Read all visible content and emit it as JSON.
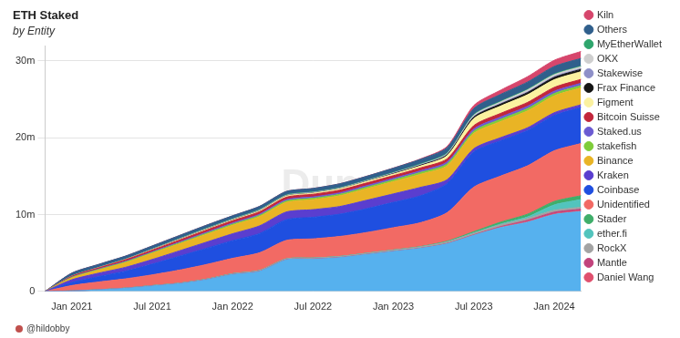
{
  "chart_data": {
    "type": "area",
    "title": "ETH Staked",
    "subtitle": "by Entity",
    "annotations": [
      "@hildobby",
      "Dune"
    ],
    "stacked": true,
    "grid": true,
    "legend": "right",
    "categories": [
      null,
      "Jan 2021",
      null,
      null,
      "Jul 2021",
      null,
      null,
      "Jan 2022",
      null,
      null,
      "Jul 2022",
      null,
      null,
      "Jan 2023",
      null,
      null,
      "Jul 2023",
      null,
      null,
      "Jan 2024",
      null
    ],
    "ylim": [
      0,
      32000000
    ],
    "yticks": [
      {
        "value": 0,
        "label": "0"
      },
      {
        "value": 10000000,
        "label": "10m"
      },
      {
        "value": 20000000,
        "label": "20m"
      },
      {
        "value": 30000000,
        "label": "30m"
      }
    ],
    "series": [
      {
        "color": "#56b1ee",
        "values": [
          0,
          50000,
          200000,
          400000,
          700000,
          1000000,
          1500000,
          2200000,
          2600000,
          4100000,
          4200000,
          4400000,
          4800000,
          5200000,
          5600000,
          6200000,
          7300000,
          8300000,
          9000000,
          10000000,
          10400000
        ]
      },
      {
        "name": "Daniel Wang",
        "color": "#e0506e",
        "values": [
          0,
          0,
          0,
          0,
          0,
          0,
          0,
          0,
          0,
          0,
          0,
          0,
          0,
          0,
          0,
          20000,
          50000,
          80000,
          100000,
          100000,
          100000
        ]
      },
      {
        "name": "Mantle",
        "color": "#c2437c",
        "values": [
          0,
          0,
          0,
          0,
          0,
          0,
          0,
          0,
          0,
          0,
          0,
          0,
          0,
          0,
          0,
          0,
          0,
          50000,
          150000,
          200000,
          200000
        ]
      },
      {
        "name": "RockX",
        "color": "#a3a3a3",
        "values": [
          0,
          10000,
          20000,
          30000,
          50000,
          60000,
          80000,
          100000,
          120000,
          130000,
          140000,
          150000,
          160000,
          180000,
          200000,
          210000,
          220000,
          230000,
          240000,
          250000,
          250000
        ]
      },
      {
        "name": "ether.fi",
        "color": "#52c4bd",
        "values": [
          0,
          0,
          0,
          0,
          0,
          0,
          0,
          0,
          0,
          0,
          0,
          0,
          0,
          0,
          0,
          20000,
          50000,
          100000,
          200000,
          700000,
          1000000
        ]
      },
      {
        "name": "Stader",
        "color": "#3fae6a",
        "values": [
          0,
          0,
          0,
          0,
          0,
          0,
          0,
          0,
          0,
          0,
          0,
          0,
          0,
          10000,
          30000,
          80000,
          150000,
          250000,
          350000,
          450000,
          500000
        ]
      },
      {
        "name": "Unidentified",
        "color": "#f26a64",
        "values": [
          0,
          700000,
          1000000,
          1200000,
          1400000,
          1700000,
          1900000,
          2000000,
          2300000,
          2400000,
          2500000,
          2600000,
          2700000,
          2900000,
          3100000,
          3700000,
          5800000,
          6000000,
          6300000,
          6600000,
          6800000
        ]
      },
      {
        "name": "Coinbase",
        "color": "#1f4fe0",
        "values": [
          0,
          400000,
          700000,
          1000000,
          1400000,
          1800000,
          2100000,
          2300000,
          2500000,
          2700000,
          2800000,
          2900000,
          3100000,
          3300000,
          3500000,
          3800000,
          4600000,
          4600000,
          4600000,
          4600000,
          4700000
        ]
      },
      {
        "name": "Kraken",
        "color": "#5a3ecf",
        "values": [
          0,
          350000,
          450000,
          500000,
          600000,
          700000,
          800000,
          900000,
          1000000,
          1000000,
          1000000,
          1000000,
          1100000,
          1100000,
          1100000,
          500000,
          400000,
          400000,
          350000,
          350000,
          350000
        ]
      },
      {
        "name": "Binance",
        "color": "#e9b425",
        "values": [
          0,
          250000,
          400000,
          600000,
          800000,
          900000,
          1000000,
          1100000,
          1200000,
          1250000,
          1300000,
          1400000,
          1500000,
          1600000,
          1700000,
          1800000,
          2000000,
          2100000,
          2200000,
          2200000,
          2200000
        ]
      },
      {
        "name": "stakefish",
        "color": "#7fcd3a",
        "values": [
          0,
          50000,
          70000,
          90000,
          100000,
          120000,
          140000,
          150000,
          160000,
          170000,
          180000,
          190000,
          200000,
          220000,
          240000,
          260000,
          280000,
          290000,
          300000,
          300000,
          300000
        ]
      },
      {
        "name": "Staked.us",
        "color": "#6b5bd2",
        "values": [
          0,
          50000,
          70000,
          90000,
          100000,
          120000,
          140000,
          150000,
          160000,
          170000,
          180000,
          190000,
          200000,
          200000,
          220000,
          250000,
          280000,
          290000,
          300000,
          300000,
          300000
        ]
      },
      {
        "name": "Bitcoin Suisse",
        "color": "#c2263b",
        "values": [
          0,
          100000,
          150000,
          200000,
          220000,
          260000,
          290000,
          300000,
          320000,
          330000,
          340000,
          350000,
          350000,
          360000,
          370000,
          400000,
          450000,
          480000,
          500000,
          500000,
          500000
        ]
      },
      {
        "name": "Figment",
        "color": "#fbf1a0",
        "values": [
          0,
          10000,
          20000,
          30000,
          50000,
          70000,
          90000,
          100000,
          120000,
          140000,
          150000,
          170000,
          190000,
          200000,
          250000,
          400000,
          900000,
          950000,
          1000000,
          1000000,
          1000000
        ]
      },
      {
        "name": "Frax Finance",
        "color": "#151515",
        "values": [
          0,
          0,
          0,
          0,
          0,
          0,
          0,
          0,
          0,
          0,
          0,
          0,
          20000,
          50000,
          80000,
          120000,
          200000,
          250000,
          280000,
          300000,
          300000
        ]
      },
      {
        "name": "Stakewise",
        "color": "#8e90c8",
        "values": [
          0,
          10000,
          20000,
          30000,
          50000,
          60000,
          70000,
          70000,
          80000,
          80000,
          80000,
          80000,
          80000,
          80000,
          80000,
          80000,
          90000,
          90000,
          90000,
          100000,
          100000
        ]
      },
      {
        "name": "OKX",
        "color": "#cfcfcf",
        "values": [
          0,
          0,
          0,
          0,
          0,
          0,
          0,
          0,
          0,
          0,
          0,
          0,
          0,
          10000,
          30000,
          80000,
          150000,
          200000,
          250000,
          250000,
          250000
        ]
      },
      {
        "name": "MyEtherWallet",
        "color": "#2ea56c",
        "values": [
          0,
          0,
          10000,
          20000,
          40000,
          60000,
          70000,
          70000,
          80000,
          80000,
          80000,
          80000,
          80000,
          80000,
          80000,
          80000,
          80000,
          80000,
          80000,
          80000,
          80000
        ]
      },
      {
        "name": "Others",
        "color": "#305f8c",
        "values": [
          0,
          400000,
          400000,
          400000,
          400000,
          400000,
          400000,
          400000,
          420000,
          450000,
          450000,
          500000,
          500000,
          550000,
          600000,
          700000,
          800000,
          900000,
          950000,
          1000000,
          1000000
        ]
      },
      {
        "name": "Kiln",
        "color": "#d6466c",
        "values": [
          0,
          0,
          0,
          0,
          0,
          0,
          0,
          0,
          0,
          0,
          0,
          0,
          10000,
          20000,
          50000,
          150000,
          400000,
          550000,
          700000,
          800000,
          900000
        ]
      }
    ]
  }
}
